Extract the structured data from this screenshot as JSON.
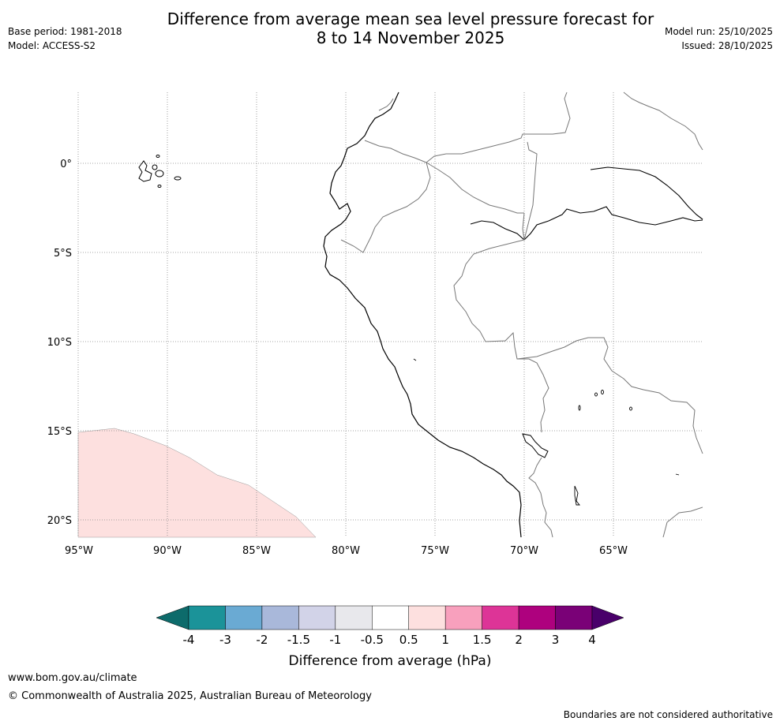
{
  "header": {
    "title_line1": "Difference from average mean sea level pressure forecast for",
    "title_line2": "8 to 14 November 2025",
    "base_period": "Base period: 1981-2018",
    "model": "Model: ACCESS-S2",
    "model_run": "Model run: 25/10/2025",
    "issued": "Issued: 28/10/2025"
  },
  "map": {
    "lat_labels": [
      "0°",
      "5°S",
      "10°S",
      "15°S",
      "20°S"
    ],
    "lon_labels": [
      "95°W",
      "90°W",
      "85°W",
      "80°W",
      "75°W",
      "70°W",
      "65°W"
    ],
    "extent": {
      "lon_min": -95,
      "lon_max": -60,
      "lat_min": -21,
      "lat_max": 4
    }
  },
  "colorbar": {
    "title": "Difference from average (hPa)",
    "tick_labels": [
      "-4",
      "-3",
      "-2",
      "-1.5",
      "-1",
      "-0.5",
      "0.5",
      "1",
      "1.5",
      "2",
      "3",
      "4"
    ],
    "colors": [
      "#0d6b6b",
      "#1b9399",
      "#6aaad3",
      "#a9b8da",
      "#d2d3e8",
      "#e8e8ec",
      "#ffffff",
      "#fde0df",
      "#f8a0bd",
      "#dd3497",
      "#ae017e",
      "#7a0177",
      "#49006a"
    ]
  },
  "footer": {
    "url": "www.bom.gov.au/climate",
    "copyright": "© Commonwealth of Australia 2025, Australian Bureau of Meteorology",
    "note": "Boundaries are not considered authoritative"
  }
}
